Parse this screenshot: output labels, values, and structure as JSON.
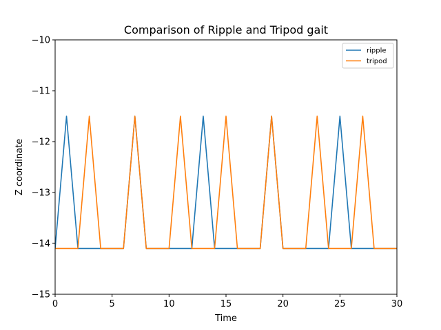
{
  "chart_data": {
    "type": "line",
    "title": "Comparison of Ripple and Tripod gait",
    "xlabel": "Time",
    "ylabel": "Z coordinate",
    "xlim": [
      0,
      30
    ],
    "ylim": [
      -15,
      -10
    ],
    "xticks": [
      0,
      5,
      10,
      15,
      20,
      25,
      30
    ],
    "yticks": [
      -15,
      -14,
      -13,
      -12,
      -11,
      -10
    ],
    "xtick_labels": [
      "0",
      "5",
      "10",
      "15",
      "20",
      "25",
      "30"
    ],
    "ytick_labels": [
      "−15",
      "−14",
      "−13",
      "−12",
      "−11",
      "−10"
    ],
    "grid": false,
    "legend_position": "top-right",
    "series": [
      {
        "name": "ripple",
        "color": "#1f77b4",
        "x": [
          0,
          1,
          2,
          3,
          4,
          5,
          6,
          7,
          8,
          9,
          10,
          11,
          12,
          13,
          14,
          15,
          16,
          17,
          18,
          19,
          20,
          21,
          22,
          23,
          24,
          25,
          26,
          27,
          28,
          29,
          30
        ],
        "y": [
          -14.1,
          -11.5,
          -14.1,
          -14.1,
          -14.1,
          -14.1,
          -14.1,
          -11.5,
          -14.1,
          -14.1,
          -14.1,
          -14.1,
          -14.1,
          -11.5,
          -14.1,
          -14.1,
          -14.1,
          -14.1,
          -14.1,
          -11.5,
          -14.1,
          -14.1,
          -14.1,
          -14.1,
          -14.1,
          -11.5,
          -14.1,
          -14.1,
          -14.1,
          -14.1,
          -14.1
        ]
      },
      {
        "name": "tripod",
        "color": "#ff7f0e",
        "x": [
          0,
          1,
          2,
          3,
          4,
          5,
          6,
          7,
          8,
          9,
          10,
          11,
          12,
          13,
          14,
          15,
          16,
          17,
          18,
          19,
          20,
          21,
          22,
          23,
          24,
          25,
          26,
          27,
          28,
          29,
          30
        ],
        "y": [
          -14.1,
          -14.1,
          -14.1,
          -11.5,
          -14.1,
          -14.1,
          -14.1,
          -11.5,
          -14.1,
          -14.1,
          -14.1,
          -11.5,
          -14.1,
          -14.1,
          -14.1,
          -11.5,
          -14.1,
          -14.1,
          -14.1,
          -11.5,
          -14.1,
          -14.1,
          -14.1,
          -11.5,
          -14.1,
          -14.1,
          -14.1,
          -11.5,
          -14.1,
          -14.1,
          -14.1
        ]
      }
    ]
  }
}
